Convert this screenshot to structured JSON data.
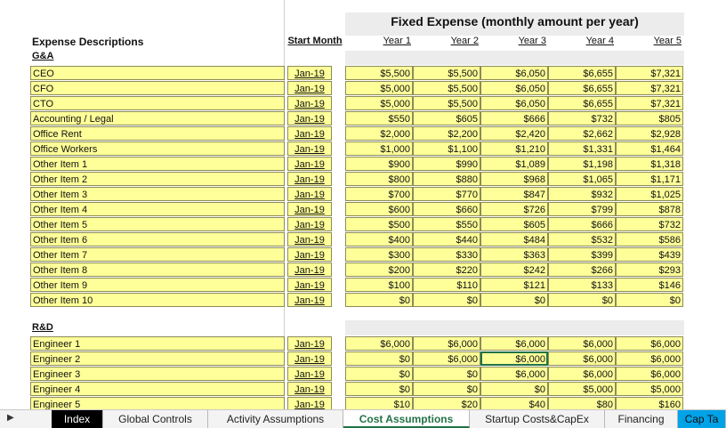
{
  "title": "Fixed Expense (monthly amount per year)",
  "headers": {
    "description": "Expense Descriptions",
    "start_month": "Start Month",
    "years": [
      "Year 1",
      "Year 2",
      "Year 3",
      "Year 4",
      "Year 5"
    ]
  },
  "sections": [
    {
      "label": "G&A",
      "rows": [
        {
          "desc": "CEO",
          "start": "Jan-19",
          "values": [
            "$5,500",
            "$5,500",
            "$6,050",
            "$6,655",
            "$7,321"
          ]
        },
        {
          "desc": "CFO",
          "start": "Jan-19",
          "values": [
            "$5,000",
            "$5,500",
            "$6,050",
            "$6,655",
            "$7,321"
          ]
        },
        {
          "desc": "CTO",
          "start": "Jan-19",
          "values": [
            "$5,000",
            "$5,500",
            "$6,050",
            "$6,655",
            "$7,321"
          ]
        },
        {
          "desc": "Accounting / Legal",
          "start": "Jan-19",
          "values": [
            "$550",
            "$605",
            "$666",
            "$732",
            "$805"
          ]
        },
        {
          "desc": "Office Rent",
          "start": "Jan-19",
          "values": [
            "$2,000",
            "$2,200",
            "$2,420",
            "$2,662",
            "$2,928"
          ]
        },
        {
          "desc": "Office Workers",
          "start": "Jan-19",
          "values": [
            "$1,000",
            "$1,100",
            "$1,210",
            "$1,331",
            "$1,464"
          ]
        },
        {
          "desc": "Other Item 1",
          "start": "Jan-19",
          "values": [
            "$900",
            "$990",
            "$1,089",
            "$1,198",
            "$1,318"
          ]
        },
        {
          "desc": "Other Item 2",
          "start": "Jan-19",
          "values": [
            "$800",
            "$880",
            "$968",
            "$1,065",
            "$1,171"
          ]
        },
        {
          "desc": "Other Item 3",
          "start": "Jan-19",
          "values": [
            "$700",
            "$770",
            "$847",
            "$932",
            "$1,025"
          ]
        },
        {
          "desc": "Other Item 4",
          "start": "Jan-19",
          "values": [
            "$600",
            "$660",
            "$726",
            "$799",
            "$878"
          ]
        },
        {
          "desc": "Other Item 5",
          "start": "Jan-19",
          "values": [
            "$500",
            "$550",
            "$605",
            "$666",
            "$732"
          ]
        },
        {
          "desc": "Other Item 6",
          "start": "Jan-19",
          "values": [
            "$400",
            "$440",
            "$484",
            "$532",
            "$586"
          ]
        },
        {
          "desc": "Other Item 7",
          "start": "Jan-19",
          "values": [
            "$300",
            "$330",
            "$363",
            "$399",
            "$439"
          ]
        },
        {
          "desc": "Other Item 8",
          "start": "Jan-19",
          "values": [
            "$200",
            "$220",
            "$242",
            "$266",
            "$293"
          ]
        },
        {
          "desc": "Other Item 9",
          "start": "Jan-19",
          "values": [
            "$100",
            "$110",
            "$121",
            "$133",
            "$146"
          ]
        },
        {
          "desc": "Other Item 10",
          "start": "Jan-19",
          "values": [
            "$0",
            "$0",
            "$0",
            "$0",
            "$0"
          ]
        }
      ]
    },
    {
      "label": "R&D",
      "rows": [
        {
          "desc": "Engineer 1",
          "start": "Jan-19",
          "values": [
            "$6,000",
            "$6,000",
            "$6,000",
            "$6,000",
            "$6,000"
          ]
        },
        {
          "desc": "Engineer 2",
          "start": "Jan-19",
          "values": [
            "$0",
            "$6,000",
            "$6,000",
            "$6,000",
            "$6,000"
          ]
        },
        {
          "desc": "Engineer 3",
          "start": "Jan-19",
          "values": [
            "$0",
            "$0",
            "$6,000",
            "$6,000",
            "$6,000"
          ]
        },
        {
          "desc": "Engineer 4",
          "start": "Jan-19",
          "values": [
            "$0",
            "$0",
            "$0",
            "$5,000",
            "$5,000"
          ]
        },
        {
          "desc": "Engineer 5",
          "start": "Jan-19",
          "values": [
            "$10",
            "$20",
            "$40",
            "$80",
            "$160"
          ]
        }
      ]
    }
  ],
  "tabs": [
    "Index",
    "Global Controls",
    "Activity Assumptions",
    "Cost Assumptions",
    "Startup Costs&CapEx",
    "Financing",
    "Cap Ta"
  ],
  "active_tab": "Cost Assumptions",
  "colors": {
    "input_fill": "#ffff99",
    "header_band": "#ececec",
    "active_tab_text": "#217346",
    "blue_tab": "#00a2e8"
  }
}
